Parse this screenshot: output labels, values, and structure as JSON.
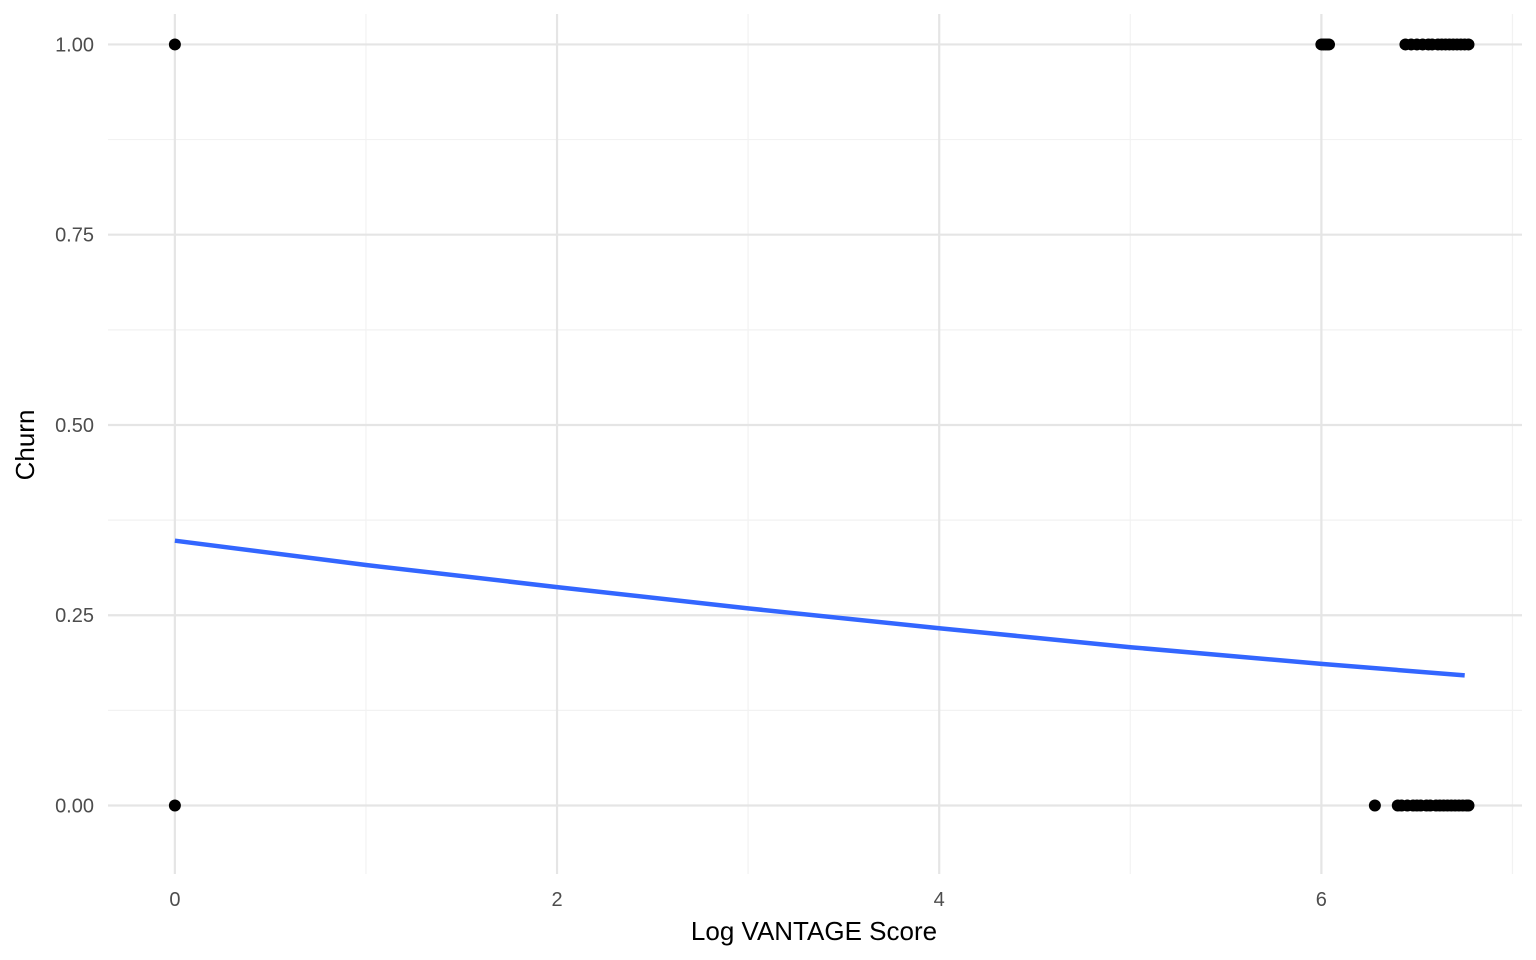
{
  "chart_data": {
    "type": "scatter",
    "title": "",
    "xlabel": "Log VANTAGE Score",
    "ylabel": "Churn",
    "xlim": [
      -0.35,
      7.05
    ],
    "ylim": [
      -0.09,
      1.04
    ],
    "x_ticks": [
      0,
      2,
      4,
      6
    ],
    "x_tick_labels": [
      "0",
      "2",
      "4",
      "6"
    ],
    "x_minor_ticks": [
      1,
      3,
      5,
      7
    ],
    "y_ticks": [
      0,
      0.25,
      0.5,
      0.75,
      1.0
    ],
    "y_tick_labels": [
      "0.00",
      "0.25",
      "0.50",
      "0.75",
      "1.00"
    ],
    "y_minor_ticks": [
      0.125,
      0.375,
      0.625,
      0.875
    ],
    "grid": true,
    "legend": "none",
    "colors": {
      "points": "#000000",
      "fit_line": "#3366ff",
      "grid_major": "#e5e5e5",
      "grid_minor": "#f2f2f2",
      "background": "#ffffff"
    },
    "series": [
      {
        "kind": "points",
        "x": [
          0.0,
          0.0,
          6.0,
          6.01,
          6.02,
          6.03,
          6.04,
          6.28,
          6.4,
          6.42,
          6.45,
          6.48,
          6.5,
          6.52,
          6.55,
          6.57,
          6.6,
          6.62,
          6.64,
          6.66,
          6.68,
          6.7,
          6.72,
          6.74,
          6.76,
          6.77,
          6.44,
          6.47,
          6.5,
          6.53,
          6.56,
          6.58,
          6.61,
          6.63,
          6.65,
          6.67,
          6.69,
          6.71,
          6.73,
          6.75,
          6.77
        ],
        "y": [
          1,
          0,
          1,
          1,
          1,
          1,
          1,
          0,
          0,
          0,
          0,
          0,
          0,
          0,
          0,
          0,
          0,
          0,
          0,
          0,
          0,
          0,
          0,
          0,
          0,
          0,
          1,
          1,
          1,
          1,
          1,
          1,
          1,
          1,
          1,
          1,
          1,
          1,
          1,
          1,
          1
        ]
      },
      {
        "kind": "logistic-fit",
        "x": [
          0,
          1,
          2,
          3,
          4,
          5,
          6,
          6.75
        ],
        "y": [
          0.348,
          0.316,
          0.287,
          0.259,
          0.233,
          0.208,
          0.186,
          0.171
        ]
      }
    ]
  }
}
